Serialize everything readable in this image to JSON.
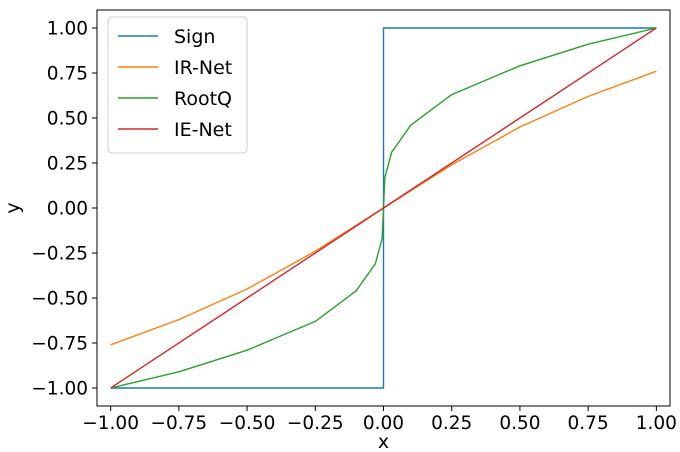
{
  "chart_data": {
    "type": "line",
    "xlabel": "x",
    "ylabel": "y",
    "xlim": [
      -1.05,
      1.05
    ],
    "ylim": [
      -1.1,
      1.1
    ],
    "grid": false,
    "legend_position": "top-left",
    "x_ticks": [
      -1.0,
      -0.75,
      -0.5,
      -0.25,
      0.0,
      0.25,
      0.5,
      0.75,
      1.0
    ],
    "x_tick_labels": [
      "−1.00",
      "−0.75",
      "−0.50",
      "−0.25",
      "0.00",
      "0.25",
      "0.50",
      "0.75",
      "1.00"
    ],
    "y_ticks": [
      1.0,
      0.75,
      0.5,
      0.25,
      0.0,
      -0.25,
      -0.5,
      -0.75,
      -1.0
    ],
    "y_tick_labels": [
      "1.00",
      "0.75",
      "0.50",
      "0.25",
      "0.00",
      "−0.25",
      "−0.50",
      "−0.75",
      "−1.00"
    ],
    "series": [
      {
        "name": "Sign",
        "color": "#1f77b4",
        "x": [
          -1.0,
          0.0,
          0.0,
          1.0
        ],
        "y": [
          -1.0,
          -1.0,
          1.0,
          1.0
        ]
      },
      {
        "name": "IR-Net",
        "color": "#ff7f0e",
        "x": [
          -1.0,
          -0.75,
          -0.5,
          -0.25,
          0.0,
          0.25,
          0.5,
          0.75,
          1.0
        ],
        "y": [
          -0.76,
          -0.62,
          -0.45,
          -0.24,
          0.0,
          0.24,
          0.45,
          0.62,
          0.76
        ]
      },
      {
        "name": "RootQ",
        "color": "#2ca02c",
        "x": [
          -1.0,
          -0.75,
          -0.5,
          -0.25,
          -0.1,
          -0.03,
          -0.005,
          0.0,
          0.005,
          0.03,
          0.1,
          0.25,
          0.5,
          0.75,
          1.0
        ],
        "y": [
          -1.0,
          -0.91,
          -0.79,
          -0.63,
          -0.46,
          -0.31,
          -0.17,
          0.0,
          0.17,
          0.31,
          0.46,
          0.63,
          0.79,
          0.91,
          1.0
        ]
      },
      {
        "name": "IE-Net",
        "color": "#d62728",
        "x": [
          -1.0,
          1.0
        ],
        "y": [
          -1.0,
          1.0
        ]
      }
    ]
  }
}
